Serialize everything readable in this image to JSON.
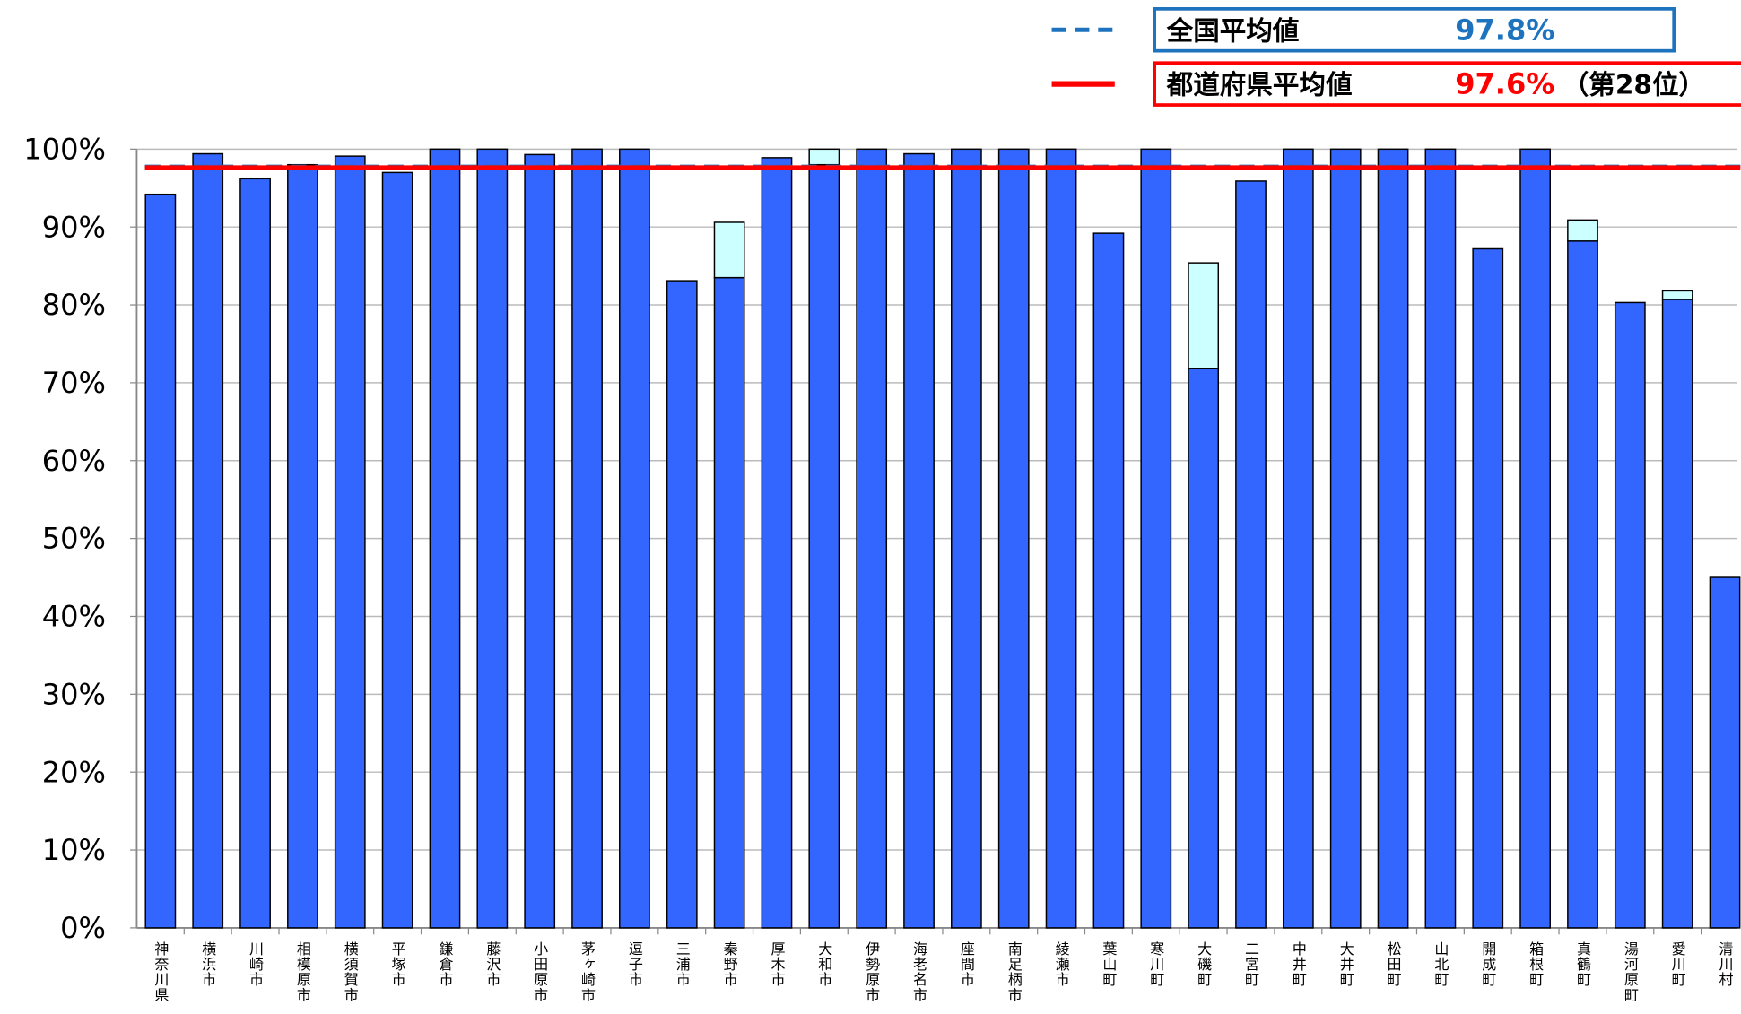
{
  "chart_data": {
    "type": "stacked_bar",
    "categories": [
      "神奈川県",
      "横浜市",
      "川崎市",
      "相模原市",
      "横須賀市",
      "平塚市",
      "鎌倉市",
      "藤沢市",
      "小田原市",
      "茅ヶ崎市",
      "逗子市",
      "三浦市",
      "秦野市",
      "厚木市",
      "大和市",
      "伊勢原市",
      "海老名市",
      "座間市",
      "南足柄市",
      "綾瀬市",
      "葉山町",
      "寒川町",
      "大磯町",
      "二宮町",
      "中井町",
      "大井町",
      "松田町",
      "山北町",
      "開成町",
      "箱根町",
      "真鶴町",
      "湯河原町",
      "愛川町",
      "清川村"
    ],
    "series": [
      {
        "color": "#3366ff",
        "values": [
          94.2,
          99.4,
          96.2,
          98.0,
          99.1,
          97.0,
          100,
          100,
          99.3,
          100,
          100,
          83.1,
          83.5,
          98.9,
          98.0,
          100,
          99.4,
          100,
          100,
          100,
          89.2,
          100,
          71.8,
          95.9,
          100,
          100,
          100,
          100,
          87.2,
          100,
          88.2,
          80.3,
          80.7,
          45.0
        ]
      },
      {
        "color": "#ccffff",
        "values": [
          0,
          0,
          0,
          0,
          0,
          0,
          0,
          0,
          0,
          0,
          0,
          0,
          7.1,
          0,
          2.0,
          0,
          0,
          0,
          0,
          0,
          0,
          0,
          13.6,
          0,
          0,
          0,
          0,
          0,
          0,
          0,
          2.7,
          0,
          1.1,
          0
        ]
      }
    ],
    "reference_lines": [
      {
        "label": "全国平均値",
        "value": 97.8,
        "value_label": "97.8%",
        "color": "#1e73be",
        "style": "dashed"
      },
      {
        "label": "都道府県平均値",
        "value": 97.6,
        "value_label": "97.6%",
        "rank_label": "（第28位）",
        "color": "#ff0000",
        "style": "solid"
      }
    ],
    "ylim": [
      0,
      100
    ],
    "yticks": [
      {
        "value": 0,
        "label": "0%"
      },
      {
        "value": 10,
        "label": "10%"
      },
      {
        "value": 20,
        "label": "20%"
      },
      {
        "value": 30,
        "label": "30%"
      },
      {
        "value": 40,
        "label": "40%"
      },
      {
        "value": 50,
        "label": "50%"
      },
      {
        "value": 60,
        "label": "60%"
      },
      {
        "value": 70,
        "label": "70%"
      },
      {
        "value": 80,
        "label": "80%"
      },
      {
        "value": 90,
        "label": "90%"
      },
      {
        "value": 100,
        "label": "100%"
      }
    ],
    "grid": true
  }
}
